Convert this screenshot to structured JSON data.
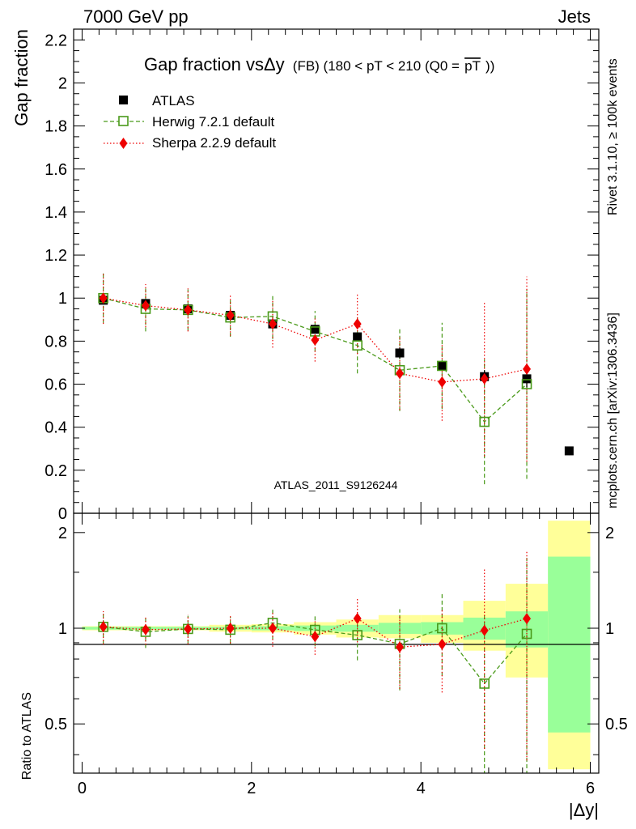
{
  "header": {
    "left": "7000 GeV pp",
    "right": "Jets"
  },
  "side_labels": {
    "rivet": "Rivet 3.1.10, ≥ 100k events",
    "mcplots": "mcplots.cern.ch [arXiv:1306.3436]"
  },
  "chart_data": {
    "type": "scatter",
    "title": "Gap fraction vsΔy",
    "title_suffix": "(FB) (180 < pT < 210 (Q0 =",
    "title_overline": "pT",
    "title_close": "))",
    "watermark": "ATLAS_2011_S9126244",
    "xlabel": "|Δy|",
    "ylabel": "Gap fraction",
    "ratio_ylabel": "Ratio to ATLAS",
    "xlim": [
      -0.1,
      6.1
    ],
    "ylim": [
      0,
      2.25
    ],
    "ratio_ylim": [
      0.35,
      2.3
    ],
    "ratio_log_scale": true,
    "grid": false,
    "legend_position": "top-left",
    "x_ticks": [
      "0",
      "2",
      "4",
      "6"
    ],
    "y_ticks": [
      "0",
      "0.2",
      "0.4",
      "0.6",
      "0.8",
      "1",
      "1.2",
      "1.4",
      "1.6",
      "1.8",
      "2",
      "2.2"
    ],
    "ratio_ticks": [
      "0.5",
      "1",
      "2"
    ],
    "x": [
      0.25,
      0.75,
      1.25,
      1.75,
      2.25,
      2.75,
      3.25,
      3.75,
      4.25,
      4.75,
      5.25,
      5.75
    ],
    "bin_width": 0.5,
    "series": [
      {
        "name": "ATLAS",
        "color": "#000000",
        "marker": "filled-square",
        "values": [
          0.99,
          0.975,
          0.95,
          0.92,
          0.88,
          0.855,
          0.82,
          0.745,
          0.685,
          0.635,
          0.625,
          0.29
        ],
        "err": [
          0.01,
          0.01,
          0.01,
          0.01,
          0.015,
          0.02,
          0.02,
          0.025,
          0.02,
          0.03,
          0.04,
          0.02
        ]
      },
      {
        "name": "Herwig 7.2.1 default",
        "color": "#4a9a1a",
        "marker": "open-square",
        "line": "dashed",
        "values": [
          1.0,
          0.95,
          0.945,
          0.91,
          0.915,
          0.845,
          0.78,
          0.665,
          0.685,
          0.425,
          0.6
        ],
        "err": [
          0.115,
          0.105,
          0.095,
          0.09,
          0.105,
          0.095,
          0.13,
          0.19,
          0.2,
          0.29,
          0.44
        ]
      },
      {
        "name": "Sherpa 2.2.9 default",
        "color": "#ee0000",
        "marker": "diamond",
        "line": "dotted",
        "values": [
          1.0,
          0.965,
          0.945,
          0.92,
          0.88,
          0.805,
          0.88,
          0.65,
          0.61,
          0.625,
          0.67
        ],
        "err": [
          0.12,
          0.1,
          0.1,
          0.095,
          0.11,
          0.1,
          0.14,
          0.17,
          0.18,
          0.36,
          0.43
        ]
      }
    ],
    "ratio_bands": {
      "stat_color": "#99ff99",
      "total_color": "#ffff99",
      "stat_lo": [
        0.99,
        0.99,
        0.99,
        0.99,
        0.985,
        0.98,
        0.975,
        0.96,
        0.955,
        0.92,
        0.87,
        0.47
      ],
      "stat_hi": [
        1.01,
        1.01,
        1.01,
        1.01,
        1.015,
        1.02,
        1.025,
        1.04,
        1.045,
        1.08,
        1.13,
        1.68
      ],
      "total_lo": [
        0.985,
        0.985,
        0.985,
        0.975,
        0.97,
        0.955,
        0.935,
        0.93,
        0.9,
        0.85,
        0.7,
        0.36
      ],
      "total_hi": [
        1.015,
        1.015,
        1.015,
        1.025,
        1.03,
        1.045,
        1.065,
        1.1,
        1.1,
        1.22,
        1.38,
        2.18
      ]
    }
  }
}
